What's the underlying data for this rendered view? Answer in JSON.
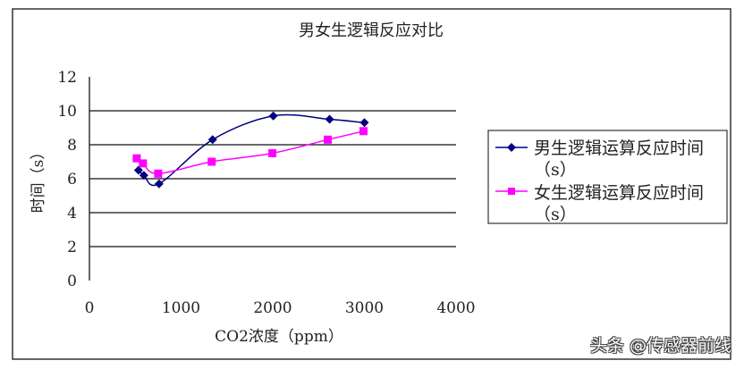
{
  "chart_data": {
    "type": "line",
    "title": "男女生逻辑反应对比",
    "xlabel": "CO2浓度（ppm）",
    "ylabel": "时间（s）",
    "xlim": [
      0,
      4000
    ],
    "ylim": [
      0,
      12
    ],
    "xticks": [
      "0",
      "1000",
      "2000",
      "3000",
      "4000"
    ],
    "yticks": [
      "0",
      "2",
      "4",
      "6",
      "8",
      "10",
      "12"
    ],
    "grid": "horizontal",
    "legend_position": "right",
    "smooth": true,
    "series": [
      {
        "name": "男生逻辑运算反应时间（s）",
        "color": "#000080",
        "marker": "diamond",
        "x": [
          535,
          594,
          760,
          1344,
          2006,
          2620,
          3000
        ],
        "y": [
          6.5,
          6.2,
          5.7,
          8.3,
          9.7,
          9.5,
          9.3
        ]
      },
      {
        "name": "女生逻辑运算反应时间（s）",
        "color": "#ff00ff",
        "marker": "square",
        "x": [
          516,
          584,
          750,
          1334,
          1996,
          2600,
          2990
        ],
        "y": [
          7.2,
          6.9,
          6.3,
          7.0,
          7.5,
          8.3,
          8.8
        ]
      }
    ],
    "legend_lines": [
      [
        "男生逻辑运算反应时间",
        "（s）"
      ],
      [
        "女生逻辑运算反应时间",
        "（s）"
      ]
    ]
  },
  "watermark": "头条 @传感器前线"
}
